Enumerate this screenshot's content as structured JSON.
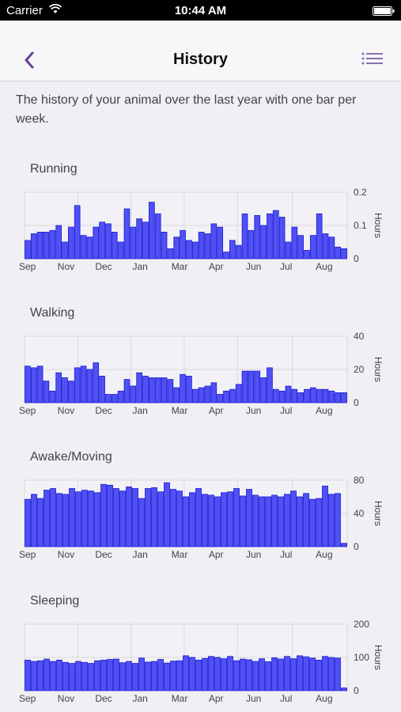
{
  "status_bar": {
    "carrier": "Carrier",
    "time": "10:44 AM"
  },
  "nav": {
    "title": "History",
    "back_icon": "chevron-left-icon",
    "menu_icon": "list-icon",
    "accent_color": "#6a3d9a"
  },
  "intro_text": "The history of your animal over the last year with one bar per week.",
  "chart_data": [
    {
      "type": "bar",
      "title": "Running",
      "ylabel": "Hours",
      "ylim": [
        0,
        0.2
      ],
      "yticks": [
        "0.2",
        "0.1",
        "0"
      ],
      "month_labels": [
        "Sep",
        "Nov",
        "Dec",
        "Jan",
        "Mar",
        "Apr",
        "Jun",
        "Jul",
        "Aug"
      ],
      "values": [
        0.055,
        0.075,
        0.08,
        0.08,
        0.085,
        0.1,
        0.05,
        0.095,
        0.16,
        0.07,
        0.065,
        0.095,
        0.11,
        0.105,
        0.08,
        0.05,
        0.15,
        0.095,
        0.12,
        0.11,
        0.17,
        0.135,
        0.08,
        0.03,
        0.065,
        0.085,
        0.055,
        0.05,
        0.08,
        0.075,
        0.105,
        0.095,
        0.02,
        0.055,
        0.04,
        0.135,
        0.085,
        0.13,
        0.1,
        0.135,
        0.145,
        0.125,
        0.05,
        0.095,
        0.07,
        0.025,
        0.07,
        0.135,
        0.075,
        0.065,
        0.035,
        0.03
      ],
      "bar_color": "#5050f5"
    },
    {
      "type": "bar",
      "title": "Walking",
      "ylabel": "Hours",
      "ylim": [
        0,
        40
      ],
      "yticks": [
        "40",
        "20",
        "0"
      ],
      "month_labels": [
        "Sep",
        "Nov",
        "Dec",
        "Jan",
        "Mar",
        "Apr",
        "Jun",
        "Jul",
        "Aug"
      ],
      "values": [
        22,
        21,
        22,
        13,
        7,
        18,
        15,
        13,
        21,
        22,
        20,
        24,
        16,
        5,
        5,
        7,
        14,
        10,
        18,
        16,
        15,
        15,
        15,
        14,
        9,
        17,
        16,
        8,
        9,
        10,
        12,
        5,
        7,
        8,
        11,
        19,
        19,
        19,
        15,
        21,
        8,
        7,
        10,
        8,
        6,
        8,
        9,
        8,
        8,
        7,
        6,
        6
      ],
      "bar_color": "#5050f5"
    },
    {
      "type": "bar",
      "title": "Awake/Moving",
      "ylabel": "Hours",
      "ylim": [
        0,
        80
      ],
      "yticks": [
        "80",
        "40",
        "0"
      ],
      "month_labels": [
        "Sep",
        "Nov",
        "Dec",
        "Jan",
        "Mar",
        "Apr",
        "Jun",
        "Jul",
        "Aug"
      ],
      "values": [
        57,
        63,
        58,
        68,
        70,
        64,
        63,
        70,
        66,
        68,
        67,
        65,
        75,
        74,
        70,
        67,
        72,
        70,
        58,
        70,
        71,
        66,
        77,
        69,
        67,
        60,
        65,
        70,
        63,
        62,
        60,
        65,
        66,
        70,
        61,
        69,
        62,
        60,
        60,
        62,
        60,
        63,
        67,
        60,
        64,
        57,
        58,
        73,
        63,
        64,
        4
      ],
      "bar_color": "#5050f5"
    },
    {
      "type": "bar",
      "title": "Sleeping",
      "ylabel": "Hours",
      "ylim": [
        0,
        200
      ],
      "yticks": [
        "200",
        "100",
        "0"
      ],
      "month_labels": [
        "Sep",
        "Nov",
        "Dec",
        "Jan",
        "Mar",
        "Apr",
        "Jun",
        "Jul",
        "Aug"
      ],
      "values": [
        92,
        88,
        90,
        95,
        88,
        92,
        85,
        82,
        88,
        85,
        82,
        90,
        92,
        94,
        95,
        84,
        88,
        82,
        98,
        86,
        88,
        94,
        83,
        89,
        90,
        105,
        100,
        92,
        97,
        103,
        100,
        96,
        103,
        90,
        95,
        93,
        88,
        96,
        87,
        99,
        95,
        103,
        96,
        105,
        102,
        98,
        92,
        103,
        100,
        98,
        8
      ],
      "bar_color": "#5050f5"
    }
  ]
}
